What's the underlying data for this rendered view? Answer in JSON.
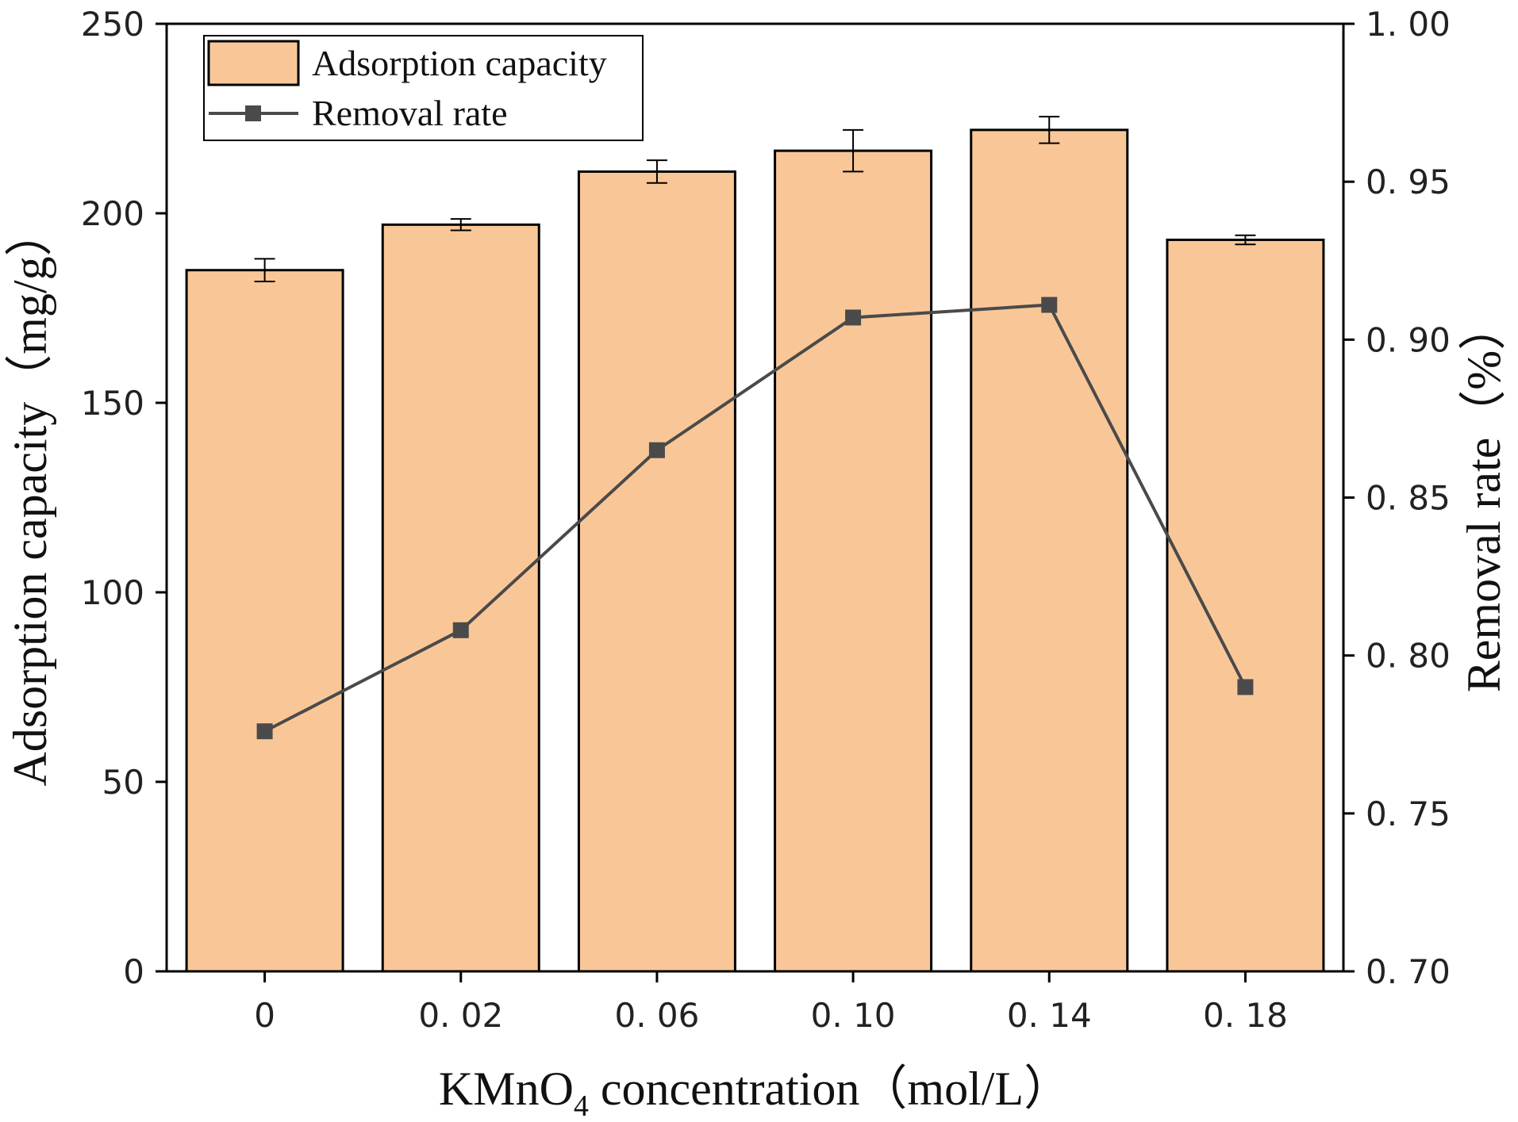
{
  "colors": {
    "bar_fill": "#F9C797",
    "bar_stroke": "#000000",
    "line": "#4A4A4A",
    "marker": "#4A4A4A",
    "axis": "#000000"
  },
  "chart_data": {
    "type": "bar+line",
    "categories": [
      "0",
      "0. 02",
      "0. 06",
      "0. 10",
      "0. 14",
      "0. 18"
    ],
    "x_title_main": "KMnO",
    "x_title_sub": "4",
    "x_title_rest": " concentration（mol/L）",
    "series": [
      {
        "name": "Adsorption capacity",
        "type": "bar",
        "axis": "left",
        "values": [
          185,
          197,
          211,
          216.5,
          222,
          193
        ],
        "errors": [
          3,
          1.5,
          3,
          5.5,
          3.5,
          1.2
        ]
      },
      {
        "name": "Removal rate",
        "type": "line",
        "axis": "right",
        "values": [
          0.776,
          0.808,
          0.865,
          0.907,
          0.911,
          0.79
        ]
      }
    ],
    "y_left": {
      "title": "Adsorption capacity（mg/g）",
      "lim": [
        0,
        250
      ],
      "ticks": [
        "0",
        "50",
        "100",
        "150",
        "200",
        "250"
      ]
    },
    "y_right": {
      "title": "Removal rate（%）",
      "lim": [
        0.7,
        1.0
      ],
      "ticks": [
        "0. 70",
        "0. 75",
        "0. 80",
        "0. 85",
        "0. 90",
        "0. 95",
        "1. 00"
      ]
    },
    "legend": {
      "position": "top-left",
      "entries": [
        "Adsorption capacity",
        "Removal rate"
      ]
    }
  }
}
